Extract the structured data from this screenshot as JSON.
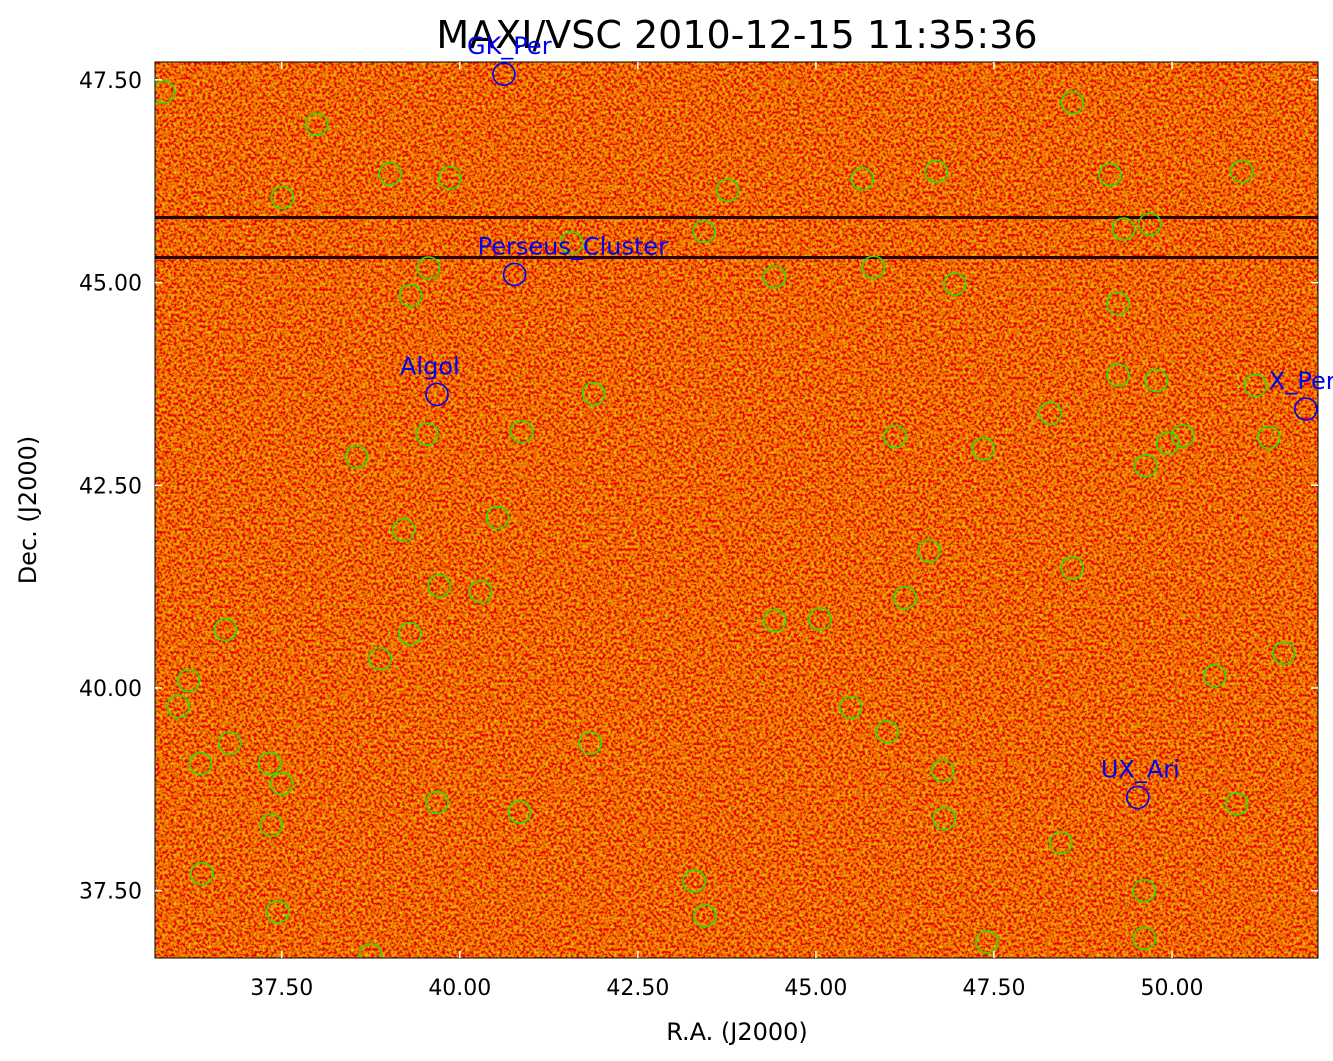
{
  "chart_data": {
    "type": "scatter",
    "title": "MAXI/VSC 2010-12-15 11:35:36",
    "x_label": "R.A. (J2000)",
    "y_label": "Dec. (J2000)",
    "xlim": [
      35.72,
      52.05
    ],
    "ylim": [
      36.67,
      47.72
    ],
    "xticks": [
      {
        "value": 37.5,
        "label": "37.50"
      },
      {
        "value": 40,
        "label": "40.00"
      },
      {
        "value": 42.5,
        "label": "42.50"
      },
      {
        "value": 45,
        "label": "45.00"
      },
      {
        "value": 47.5,
        "label": "47.50"
      },
      {
        "value": 50,
        "label": "50.00"
      }
    ],
    "yticks": [
      {
        "value": 37.5,
        "label": "37.50"
      },
      {
        "value": 40,
        "label": "40.00"
      },
      {
        "value": 42.5,
        "label": "42.50"
      },
      {
        "value": 45,
        "label": "45.00"
      },
      {
        "value": 47.5,
        "label": "47.50"
      }
    ],
    "series": [
      {
        "color": "#33dd00",
        "x": [
          35.84,
          37.99,
          37.51,
          39.02,
          39.86,
          43.76,
          43.43,
          41.57,
          39.56,
          39.31,
          44.42,
          45.65,
          46.69,
          45.81,
          46.95,
          48.6,
          49.13,
          49.32,
          49.69,
          50.98,
          49.24,
          49.24,
          49.78,
          51.17,
          48.29,
          51.36,
          49.94,
          50.15,
          49.63,
          47.35,
          46.11,
          41.88,
          39.54,
          40.87,
          38.55,
          39.21,
          40.53,
          39.71,
          40.29,
          46.59,
          48.6,
          46.25,
          44.42,
          45.06,
          36.71,
          39.3,
          38.88,
          36.19,
          36.05,
          36.77,
          36.36,
          37.33,
          37.5,
          37.35,
          41.83,
          45.49,
          46.0,
          50.6,
          51.57,
          46.78,
          46.8,
          39.68,
          40.84,
          50.91,
          48.44,
          36.38,
          43.29,
          43.44,
          37.44,
          49.61,
          49.61,
          47.4,
          38.75
        ],
        "y": [
          47.35,
          46.95,
          46.05,
          46.34,
          46.29,
          46.14,
          45.63,
          45.49,
          45.18,
          44.84,
          45.07,
          46.28,
          46.37,
          45.19,
          44.98,
          47.22,
          46.33,
          45.66,
          45.72,
          46.37,
          44.74,
          43.86,
          43.79,
          43.73,
          43.39,
          43.09,
          43.02,
          43.11,
          42.74,
          42.95,
          43.1,
          43.63,
          43.13,
          43.16,
          42.85,
          41.95,
          42.1,
          41.26,
          41.19,
          41.69,
          41.48,
          41.11,
          40.83,
          40.85,
          40.72,
          40.67,
          40.36,
          40.09,
          39.77,
          39.32,
          39.07,
          39.07,
          38.82,
          38.31,
          39.32,
          39.76,
          39.46,
          40.15,
          40.43,
          38.98,
          38.39,
          38.59,
          38.47,
          38.57,
          38.09,
          37.71,
          37.62,
          37.19,
          37.24,
          37.5,
          36.91,
          36.87,
          36.71
        ]
      },
      {
        "color": "#0000ee",
        "labels": [
          "GK_Per",
          "Perseus_Cluster",
          "Algol",
          "X_Per",
          "UX_Ari"
        ],
        "x": [
          40.62,
          40.77,
          39.68,
          51.88,
          49.52
        ],
        "y": [
          47.57,
          45.1,
          43.62,
          43.44,
          38.65
        ]
      }
    ]
  }
}
